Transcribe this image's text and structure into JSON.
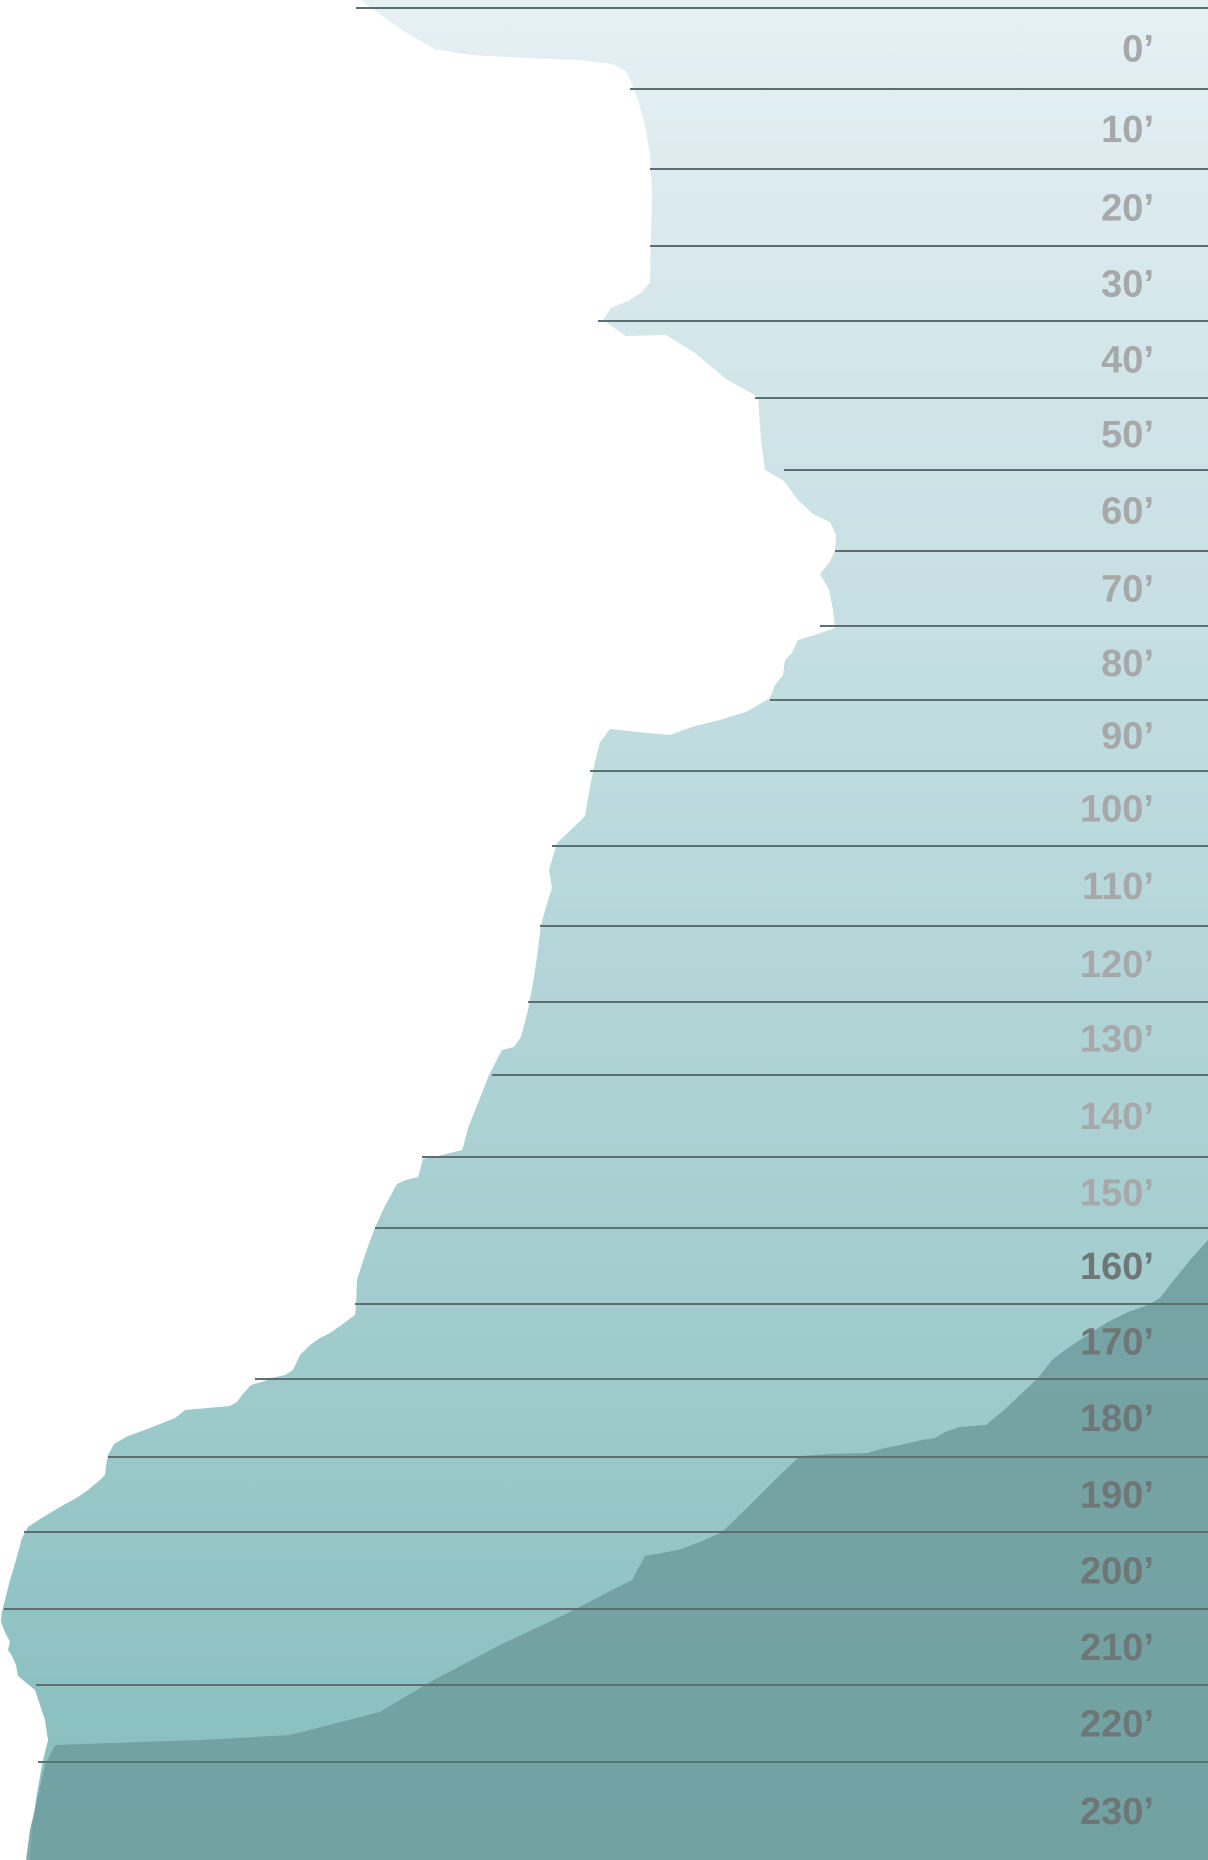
{
  "depth_labels": [
    "0’",
    "10’",
    "20’",
    "30’",
    "40’",
    "50’",
    "60’",
    "70’",
    "80’",
    "90’",
    "100’",
    "110’",
    "120’",
    "130’",
    "140’",
    "150’",
    "160’",
    "170’",
    "180’",
    "190’",
    "200’",
    "210’",
    "220’",
    "230’"
  ],
  "colors": {
    "water_top": "#e6f0f5",
    "water_bottom": "#85bdbd",
    "cliff_rock": "#ffffff",
    "seabed_rock": "#6e9c9e",
    "depth_line": "#5c6f73",
    "label_light": "#a6a8aa",
    "label_dark": "#6e7676"
  }
}
